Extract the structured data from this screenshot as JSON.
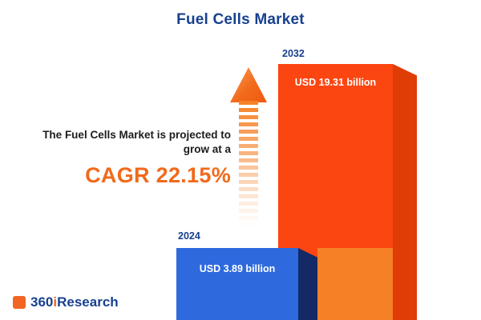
{
  "title": "Fuel Cells Market",
  "annotation": {
    "line1": "The Fuel Cells Market is projected to",
    "line2": "grow at a",
    "cagr_text": "CAGR 22.15%"
  },
  "chart_data": {
    "type": "bar",
    "title": "Fuel Cells Market",
    "categories": [
      "2024",
      "2032"
    ],
    "values": [
      3.89,
      19.31
    ],
    "value_unit": "USD billion",
    "value_labels": [
      "USD 3.89 billion",
      "USD 19.31 billion"
    ],
    "cagr_percent": 22.15,
    "orientation": "vertical",
    "legend": "none",
    "grid": false,
    "bar_colors": [
      "#2e6ade",
      "#fb4612"
    ],
    "bar_side_colors": [
      "#132a66",
      "#e03c05"
    ],
    "accent_orange": "#f2691a",
    "title_color": "#17418f"
  },
  "logo": {
    "part1": "360",
    "part2": "i",
    "part3": "Research"
  }
}
